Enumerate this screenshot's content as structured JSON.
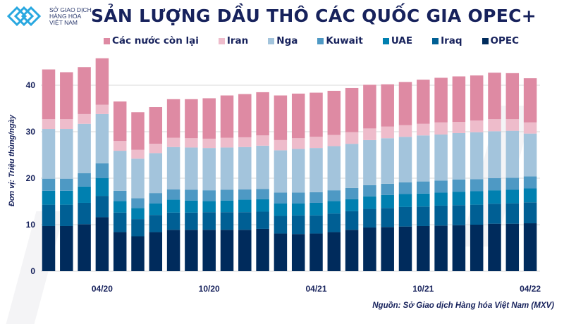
{
  "logo": {
    "line1": "SỞ GIAO DỊCH",
    "line2": "HÀNG HÓA",
    "line3": "VIỆT NAM"
  },
  "source": "Nguồn: Sở Giao dịch Hàng hóa Việt Nam (MXV)",
  "chart_data": {
    "type": "bar",
    "stacked": true,
    "title": "SẢN LƯỢNG DẦU THÔ CÁC QUỐC GIA OPEC+",
    "ylabel": "Đơn vị: Triệu thùng/ngày",
    "xlabel": "",
    "ylim": [
      0,
      46
    ],
    "yticks": [
      0,
      10,
      20,
      30,
      40
    ],
    "grid": true,
    "legend_position": "top",
    "categories": [
      "",
      "",
      "",
      "04/20",
      "",
      "",
      "",
      "",
      "",
      "10/20",
      "",
      "",
      "",
      "",
      "",
      "04/21",
      "",
      "",
      "",
      "",
      "",
      "10/21",
      "",
      "",
      "",
      "",
      "",
      "04/22"
    ],
    "series": [
      {
        "name": "OPEC",
        "color": "#002b5c",
        "values": [
          9.7,
          9.7,
          10.1,
          11.6,
          8.4,
          7.5,
          8.4,
          8.9,
          8.9,
          8.9,
          8.9,
          8.9,
          9.1,
          8.1,
          8.0,
          8.1,
          8.4,
          8.9,
          9.4,
          9.5,
          9.6,
          9.7,
          9.8,
          9.9,
          10.0,
          10.2,
          10.2,
          10.3
        ]
      },
      {
        "name": "Iraq",
        "color": "#005f94",
        "values": [
          4.6,
          4.6,
          4.6,
          4.6,
          4.2,
          3.7,
          3.7,
          3.7,
          3.7,
          3.8,
          3.8,
          3.8,
          3.7,
          3.8,
          4.0,
          3.9,
          4.0,
          4.0,
          4.0,
          4.1,
          4.2,
          4.2,
          4.3,
          4.3,
          4.3,
          4.3,
          4.4,
          4.5
        ]
      },
      {
        "name": "UAE",
        "color": "#0080b0",
        "values": [
          3.0,
          3.0,
          3.5,
          3.8,
          2.5,
          2.4,
          2.5,
          2.8,
          2.6,
          2.4,
          2.5,
          2.7,
          2.7,
          2.7,
          2.6,
          2.7,
          2.7,
          2.6,
          2.7,
          2.8,
          2.8,
          2.8,
          2.8,
          2.9,
          2.9,
          2.9,
          2.9,
          3.0
        ]
      },
      {
        "name": "Kuwait",
        "color": "#4e99c4",
        "values": [
          2.6,
          2.6,
          2.9,
          3.2,
          2.2,
          2.1,
          2.2,
          2.2,
          2.3,
          2.3,
          2.3,
          2.2,
          2.2,
          2.3,
          2.3,
          2.3,
          2.3,
          2.4,
          2.4,
          2.4,
          2.5,
          2.6,
          2.6,
          2.6,
          2.6,
          2.6,
          2.6,
          2.6
        ]
      },
      {
        "name": "Nga",
        "color": "#a3c4dc",
        "values": [
          10.7,
          10.7,
          10.6,
          10.6,
          8.6,
          8.5,
          8.6,
          9.1,
          9.1,
          9.1,
          9.1,
          9.1,
          9.3,
          9.1,
          9.4,
          9.5,
          9.5,
          9.5,
          9.7,
          9.8,
          9.8,
          9.9,
          9.9,
          10.0,
          10.1,
          10.1,
          10.1,
          9.2
        ]
      },
      {
        "name": "Iran",
        "color": "#eebccb",
        "values": [
          2.1,
          2.1,
          2.1,
          2.0,
          2.1,
          1.9,
          2.0,
          2.0,
          2.0,
          2.0,
          2.1,
          2.1,
          2.2,
          2.2,
          2.3,
          2.4,
          2.4,
          2.5,
          2.5,
          2.5,
          2.5,
          2.5,
          2.6,
          2.4,
          2.5,
          2.6,
          2.5,
          2.4
        ]
      },
      {
        "name": "Các nước còn lại",
        "color": "#de8aa3",
        "values": [
          10.7,
          10.1,
          10.1,
          10.0,
          8.5,
          8.1,
          7.9,
          8.3,
          8.4,
          8.7,
          9.1,
          9.3,
          9.3,
          9.6,
          9.6,
          9.5,
          9.5,
          9.5,
          9.4,
          9.1,
          9.3,
          9.5,
          9.6,
          9.8,
          9.7,
          10.0,
          9.9,
          9.5
        ]
      }
    ]
  }
}
